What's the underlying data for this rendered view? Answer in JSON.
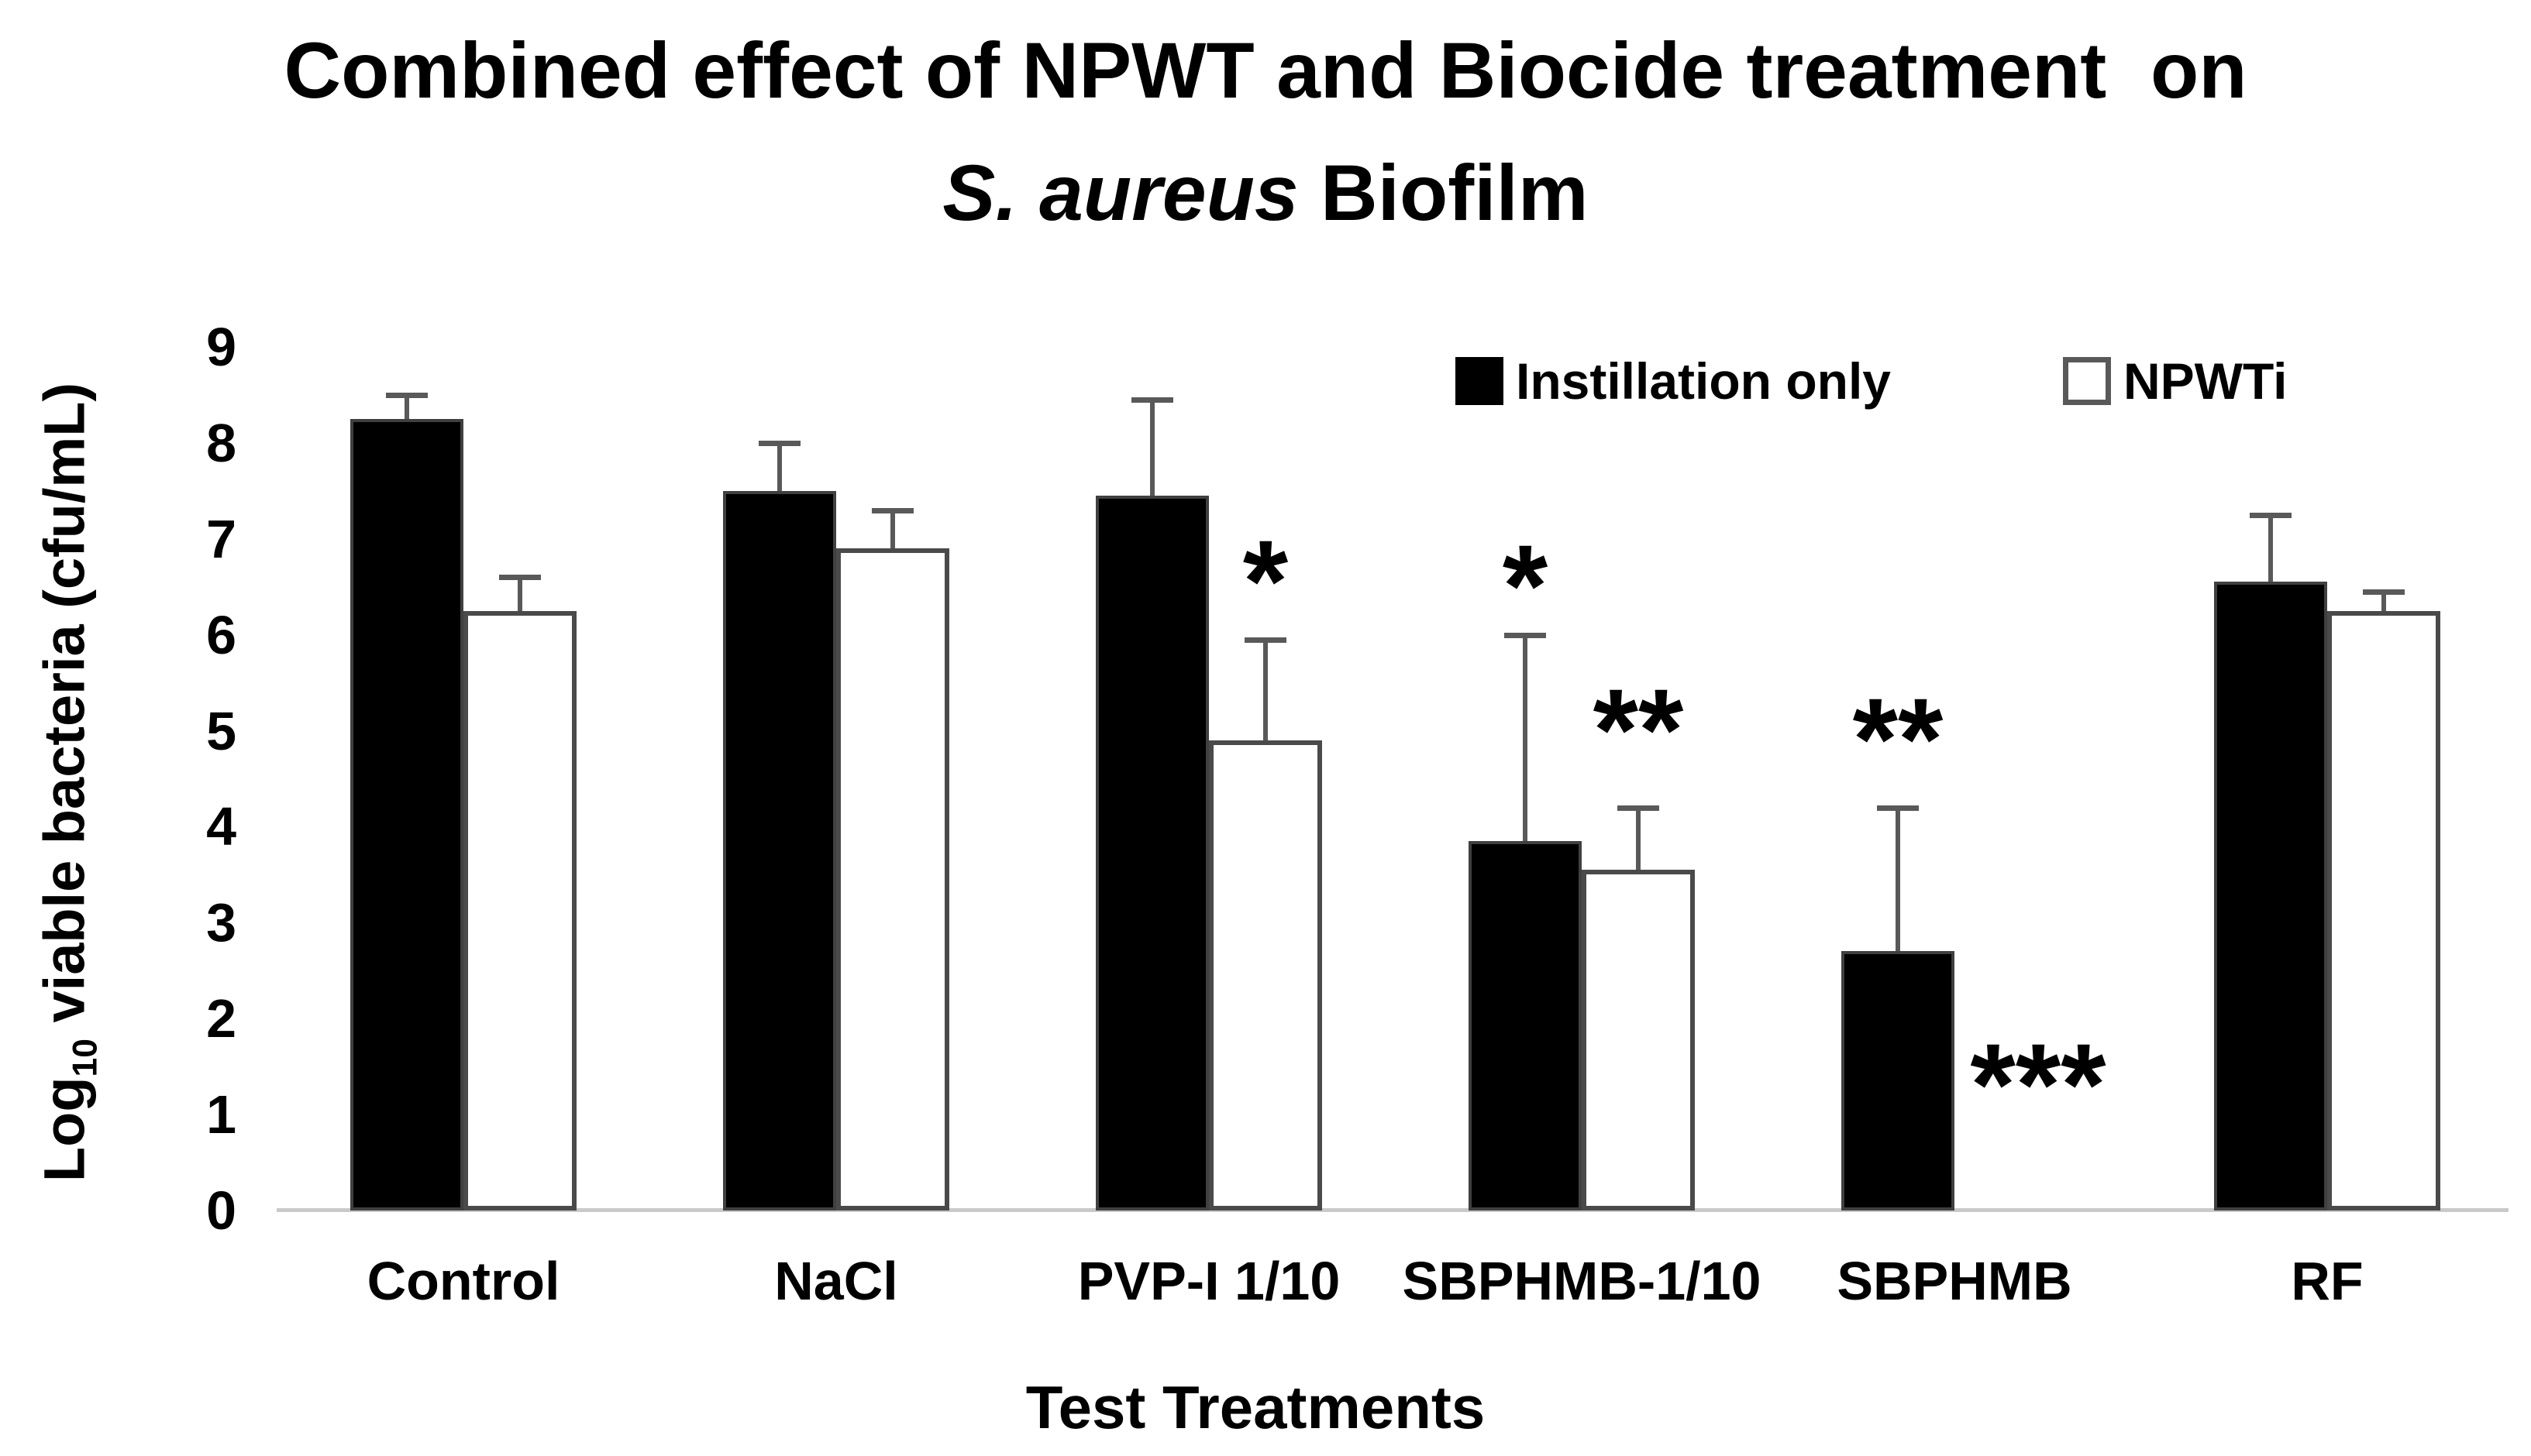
{
  "title": {
    "line1": "Combined effect of NPWT and Biocide treatment  on",
    "line2_italic": "S. aureus",
    "line2_rest": " Biofilm"
  },
  "axes": {
    "y_label_pre": "Log",
    "y_label_sub": "10",
    "y_label_post": " viable bacteria (cfu/mL)",
    "y_ticks": [
      "0",
      "1",
      "2",
      "3",
      "4",
      "5",
      "6",
      "7",
      "8",
      "9"
    ],
    "x_label": "Test Treatments"
  },
  "legend": {
    "items": [
      {
        "label": "Instillation only",
        "swatch": "black"
      },
      {
        "label": "NPWTi",
        "swatch": "white"
      }
    ]
  },
  "colors": {
    "bar_fill_series1": "#000000",
    "bar_fill_series2": "#ffffff",
    "bar_border": "#4a4a4a",
    "error_bar": "#595959",
    "axis_line": "#c9c9c9",
    "text": "#000000"
  },
  "chart_data": {
    "type": "bar",
    "title": "Combined effect of NPWT and Biocide treatment on S. aureus Biofilm",
    "categories": [
      "Control",
      "NaCl",
      "PVP-I 1/10",
      "SBPHMB-1/10",
      "SBPHMB",
      "RF"
    ],
    "series": [
      {
        "name": "Instillation only",
        "values": [
          8.25,
          7.5,
          7.45,
          3.85,
          2.7,
          6.55
        ],
        "errors": [
          0.25,
          0.5,
          1.0,
          2.15,
          1.5,
          0.7
        ]
      },
      {
        "name": "NPWTi",
        "values": [
          6.25,
          6.9,
          4.9,
          3.55,
          0,
          6.25
        ],
        "errors": [
          0.35,
          0.4,
          1.05,
          0.65,
          0,
          0.2
        ]
      }
    ],
    "ylabel": "Log10 viable bacteria (cfu/mL)",
    "xlabel": "Test Treatments",
    "ylim": [
      0,
      9
    ],
    "grid": false,
    "legend_position": "top-right-inside",
    "error_bars": "upper-only",
    "annotations": [
      {
        "text": "*",
        "category": "PVP-I 1/10",
        "series": "NPWTi",
        "y": 6.75
      },
      {
        "text": "*",
        "category": "SBPHMB-1/10",
        "series": "Instillation only",
        "y": 6.7
      },
      {
        "text": "**",
        "category": "SBPHMB-1/10",
        "series": "NPWTi",
        "y": 5.2
      },
      {
        "text": "**",
        "category": "SBPHMB",
        "series": "Instillation only",
        "y": 5.1
      },
      {
        "text": "***",
        "category": "SBPHMB",
        "series": "NPWTi",
        "y": 1.5,
        "dx": 35
      }
    ]
  }
}
